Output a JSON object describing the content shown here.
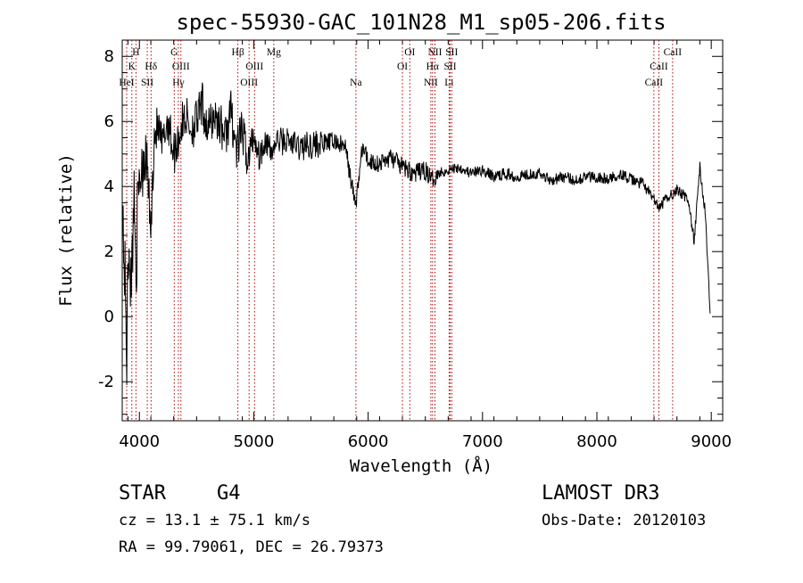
{
  "chart_data": {
    "type": "line",
    "title": "spec-55930-GAC_101N28_M1_sp05-206.fits",
    "xlabel": "Wavelength (Å)",
    "ylabel": "Flux (relative)",
    "xlim": [
      3850,
      9100
    ],
    "ylim": [
      -3.2,
      8.5
    ],
    "x_ticks": [
      4000,
      5000,
      6000,
      7000,
      8000,
      9000
    ],
    "y_ticks": [
      -2,
      0,
      2,
      4,
      6,
      8
    ],
    "grid": false,
    "series": [
      {
        "name": "flux",
        "x": [
          3850,
          3870,
          3890,
          3910,
          3930,
          3950,
          3970,
          3990,
          4010,
          4040,
          4070,
          4100,
          4130,
          4160,
          4200,
          4250,
          4300,
          4350,
          4400,
          4450,
          4500,
          4550,
          4600,
          4650,
          4700,
          4750,
          4800,
          4850,
          4900,
          4950,
          5000,
          5050,
          5100,
          5150,
          5200,
          5300,
          5400,
          5500,
          5600,
          5700,
          5800,
          5890,
          5950,
          6000,
          6100,
          6200,
          6300,
          6400,
          6500,
          6563,
          6600,
          6700,
          6800,
          6900,
          7000,
          7100,
          7200,
          7300,
          7400,
          7500,
          7600,
          7700,
          7800,
          7900,
          8000,
          8100,
          8200,
          8300,
          8400,
          8500,
          8540,
          8600,
          8700,
          8800,
          8850,
          8900,
          8950,
          8990
        ],
        "y": [
          3.6,
          1.5,
          -1.0,
          2.8,
          0.5,
          3.9,
          1.8,
          3.3,
          4.5,
          5.2,
          4.6,
          2.5,
          5.6,
          5.8,
          5.2,
          6.1,
          5.0,
          5.6,
          6.2,
          5.8,
          6.0,
          6.5,
          5.7,
          6.2,
          6.0,
          5.5,
          6.3,
          5.1,
          5.7,
          4.8,
          5.6,
          4.9,
          5.5,
          5.0,
          5.4,
          5.4,
          5.2,
          5.3,
          5.3,
          5.4,
          5.2,
          3.4,
          5.2,
          4.8,
          4.7,
          4.9,
          4.6,
          4.4,
          4.5,
          4.2,
          4.4,
          4.5,
          4.6,
          4.4,
          4.5,
          4.3,
          4.4,
          4.3,
          4.4,
          4.4,
          4.2,
          4.3,
          4.2,
          4.3,
          4.3,
          4.2,
          4.4,
          4.2,
          4.1,
          3.6,
          3.3,
          3.6,
          3.9,
          3.6,
          2.3,
          4.6,
          3.1,
          0.1
        ]
      }
    ],
    "lines": [
      {
        "label": "H",
        "wavelength": 3970,
        "row": 1
      },
      {
        "label": "K",
        "wavelength": 3934,
        "row": 2
      },
      {
        "label": "HeI",
        "wavelength": 3889,
        "row": 3
      },
      {
        "label": "Hδ",
        "wavelength": 4102,
        "row": 2
      },
      {
        "label": "SII",
        "wavelength": 4069,
        "row": 3
      },
      {
        "label": "G",
        "wavelength": 4305,
        "row": 1
      },
      {
        "label": "OIII",
        "wavelength": 4363,
        "row": 2
      },
      {
        "label": "Hγ",
        "wavelength": 4341,
        "row": 3
      },
      {
        "label": "Hβ",
        "wavelength": 4861,
        "row": 1
      },
      {
        "label": "OIII",
        "wavelength": 5007,
        "row": 2
      },
      {
        "label": "OIII",
        "wavelength": 4959,
        "row": 3
      },
      {
        "label": "Mg",
        "wavelength": 5175,
        "row": 1
      },
      {
        "label": "Na",
        "wavelength": 5893,
        "row": 3
      },
      {
        "label": "OI",
        "wavelength": 6364,
        "row": 1
      },
      {
        "label": "OI",
        "wavelength": 6300,
        "row": 2
      },
      {
        "label": "NII",
        "wavelength": 6584,
        "row": 1
      },
      {
        "label": "Hα",
        "wavelength": 6563,
        "row": 2
      },
      {
        "label": "NII",
        "wavelength": 6548,
        "row": 3
      },
      {
        "label": "SII",
        "wavelength": 6731,
        "row": 1
      },
      {
        "label": "SII",
        "wavelength": 6717,
        "row": 2
      },
      {
        "label": "Li",
        "wavelength": 6708,
        "row": 3
      },
      {
        "label": "CaII",
        "wavelength": 8662,
        "row": 1
      },
      {
        "label": "CaII",
        "wavelength": 8542,
        "row": 2
      },
      {
        "label": "CaII",
        "wavelength": 8498,
        "row": 3
      }
    ],
    "line_color": "#b00000"
  },
  "info": {
    "object_class": "STAR",
    "subclass": "G4",
    "survey": "LAMOST DR3",
    "cz": "cz = 13.1 ± 75.1 km/s",
    "obs_date": "Obs-Date: 20120103",
    "radec": "RA =  99.79061, DEC =  26.79373"
  }
}
